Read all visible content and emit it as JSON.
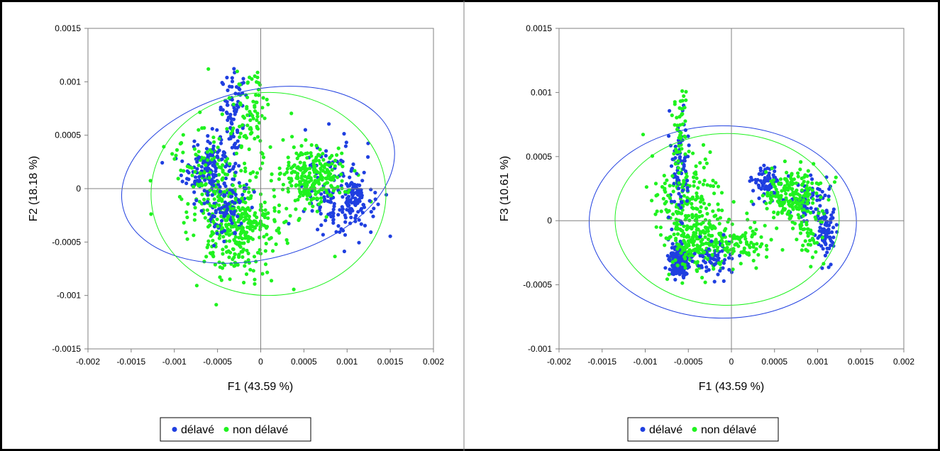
{
  "colors": {
    "delave": "#1f3fe0",
    "non_delave": "#1ff21f",
    "frame": "#000000",
    "axis": "#808080"
  },
  "chart_data": [
    {
      "type": "scatter",
      "xlabel": "F1 (43.59 %)",
      "ylabel": "F2 (18.18 %)",
      "xlim": [
        -0.002,
        0.002
      ],
      "ylim": [
        -0.0015,
        0.0015
      ],
      "xticks": [
        -0.002,
        -0.0015,
        -0.001,
        -0.0005,
        0,
        0.0005,
        0.001,
        0.0015,
        0.002
      ],
      "xtick_labels": [
        "-0.002",
        "-0.0015",
        "-0.001",
        "-0.0005",
        "0",
        "0.0005",
        "0.001",
        "0.0015",
        "0.002"
      ],
      "yticks": [
        -0.0015,
        -0.001,
        -0.0005,
        0,
        0.0005,
        0.001,
        0.0015
      ],
      "ytick_labels": [
        "-0.0015",
        "-0.001",
        "-0.0005",
        "0",
        "0.0005",
        "0.001",
        "0.0015"
      ],
      "legend_position": "bottom",
      "grid": false,
      "series": [
        {
          "name": "délavé",
          "color": "#1f3fe0",
          "clusters": [
            {
              "cx": -0.00058,
              "cy": 0.00018,
              "sx": 0.00016,
              "sy": 0.00017,
              "n": 170
            },
            {
              "cx": -0.0003,
              "cy": 0.00075,
              "sx": 8e-05,
              "sy": 0.00016,
              "n": 70
            },
            {
              "cx": 0.0009,
              "cy": -5e-05,
              "sx": 0.0002,
              "sy": 0.00022,
              "n": 150
            },
            {
              "cx": 0.0011,
              "cy": -0.0001,
              "sx": 6e-05,
              "sy": 0.0001,
              "n": 60
            },
            {
              "cx": -0.0004,
              "cy": -0.0002,
              "sx": 0.00012,
              "sy": 0.00015,
              "n": 70
            }
          ],
          "ellipse": {
            "cx": -3e-05,
            "cy": 0.00013,
            "rx": 0.00161,
            "ry": 0.00079,
            "angle_deg": -14
          }
        },
        {
          "name": "non délavé",
          "color": "#1ff21f",
          "clusters": [
            {
              "cx": -0.0006,
              "cy": 0.0001,
              "sx": 0.00018,
              "sy": 0.00022,
              "n": 120
            },
            {
              "cx": -0.00028,
              "cy": -0.0004,
              "sx": 0.00018,
              "sy": 0.00023,
              "n": 260
            },
            {
              "cx": 0.0006,
              "cy": 0.00012,
              "sx": 0.0002,
              "sy": 0.00014,
              "n": 240
            },
            {
              "cx": -0.0001,
              "cy": 0.0006,
              "sx": 0.0001,
              "sy": 0.0002,
              "n": 70
            },
            {
              "cx": 0.00015,
              "cy": -0.0003,
              "sx": 0.00018,
              "sy": 0.00012,
              "n": 40
            },
            {
              "cx": -0.0004,
              "cy": 5e-05,
              "sx": 0.00035,
              "sy": 0.0005,
              "n": 70
            }
          ],
          "ellipse": {
            "cx": 9e-05,
            "cy": -5e-05,
            "rx": 0.00136,
            "ry": 0.00095,
            "angle_deg": 0
          }
        }
      ]
    },
    {
      "type": "scatter",
      "xlabel": "F1 (43.59 %)",
      "ylabel": "F3 (10.61 %)",
      "xlim": [
        -0.002,
        0.002
      ],
      "ylim": [
        -0.001,
        0.0015
      ],
      "xticks": [
        -0.002,
        -0.0015,
        -0.001,
        -0.0005,
        0,
        0.0005,
        0.001,
        0.0015,
        0.002
      ],
      "xtick_labels": [
        "-0.002",
        "-0.0015",
        "-0.001",
        "-0.0005",
        "0",
        "0.0005",
        "0.001",
        "0.0015",
        "0.002"
      ],
      "yticks": [
        -0.001,
        -0.0005,
        0,
        0.0005,
        0.001,
        0.0015
      ],
      "ytick_labels": [
        "-0.001",
        "-0.0005",
        "0",
        "0.0005",
        "0.001",
        "0.0015"
      ],
      "legend_position": "bottom",
      "grid": false,
      "series": [
        {
          "name": "délavé",
          "color": "#1f3fe0",
          "clusters": [
            {
              "cx": -0.0006,
              "cy": -0.00032,
              "sx": 6e-05,
              "sy": 6e-05,
              "n": 170
            },
            {
              "cx": -0.0006,
              "cy": 0.0004,
              "sx": 6e-05,
              "sy": 0.00025,
              "n": 80
            },
            {
              "cx": 0.0004,
              "cy": 0.0003,
              "sx": 8e-05,
              "sy": 6e-05,
              "n": 70
            },
            {
              "cx": 0.0011,
              "cy": -0.0001,
              "sx": 5e-05,
              "sy": 0.0001,
              "n": 80
            },
            {
              "cx": 0.0009,
              "cy": 0.00015,
              "sx": 0.00012,
              "sy": 0.0001,
              "n": 60
            },
            {
              "cx": -0.0002,
              "cy": -0.0003,
              "sx": 0.00012,
              "sy": 8e-05,
              "n": 60
            }
          ],
          "ellipse": {
            "cx": -0.0001,
            "cy": -1e-05,
            "rx": 0.00155,
            "ry": 0.00075,
            "angle_deg": 0
          }
        },
        {
          "name": "non délavé",
          "color": "#1ff21f",
          "clusters": [
            {
              "cx": -0.0005,
              "cy": 0.0001,
              "sx": 0.0002,
              "sy": 0.0002,
              "n": 220
            },
            {
              "cx": -0.0004,
              "cy": -0.0002,
              "sx": 0.0002,
              "sy": 0.0001,
              "n": 150
            },
            {
              "cx": 0.0007,
              "cy": 0.0002,
              "sx": 0.00018,
              "sy": 0.0001,
              "n": 200
            },
            {
              "cx": 0.0001,
              "cy": -0.00018,
              "sx": 0.0002,
              "sy": 9e-05,
              "n": 90
            },
            {
              "cx": -0.0006,
              "cy": 0.0007,
              "sx": 5e-05,
              "sy": 0.0002,
              "n": 45
            },
            {
              "cx": 0.0009,
              "cy": -0.0001,
              "sx": 8e-05,
              "sy": 0.0001,
              "n": 40
            }
          ],
          "ellipse": {
            "cx": -5e-05,
            "cy": 1e-05,
            "rx": 0.0013,
            "ry": 0.00067,
            "angle_deg": 0
          }
        }
      ]
    }
  ],
  "legend": {
    "items": [
      {
        "label": "délavé"
      },
      {
        "label": "non délavé"
      }
    ]
  }
}
